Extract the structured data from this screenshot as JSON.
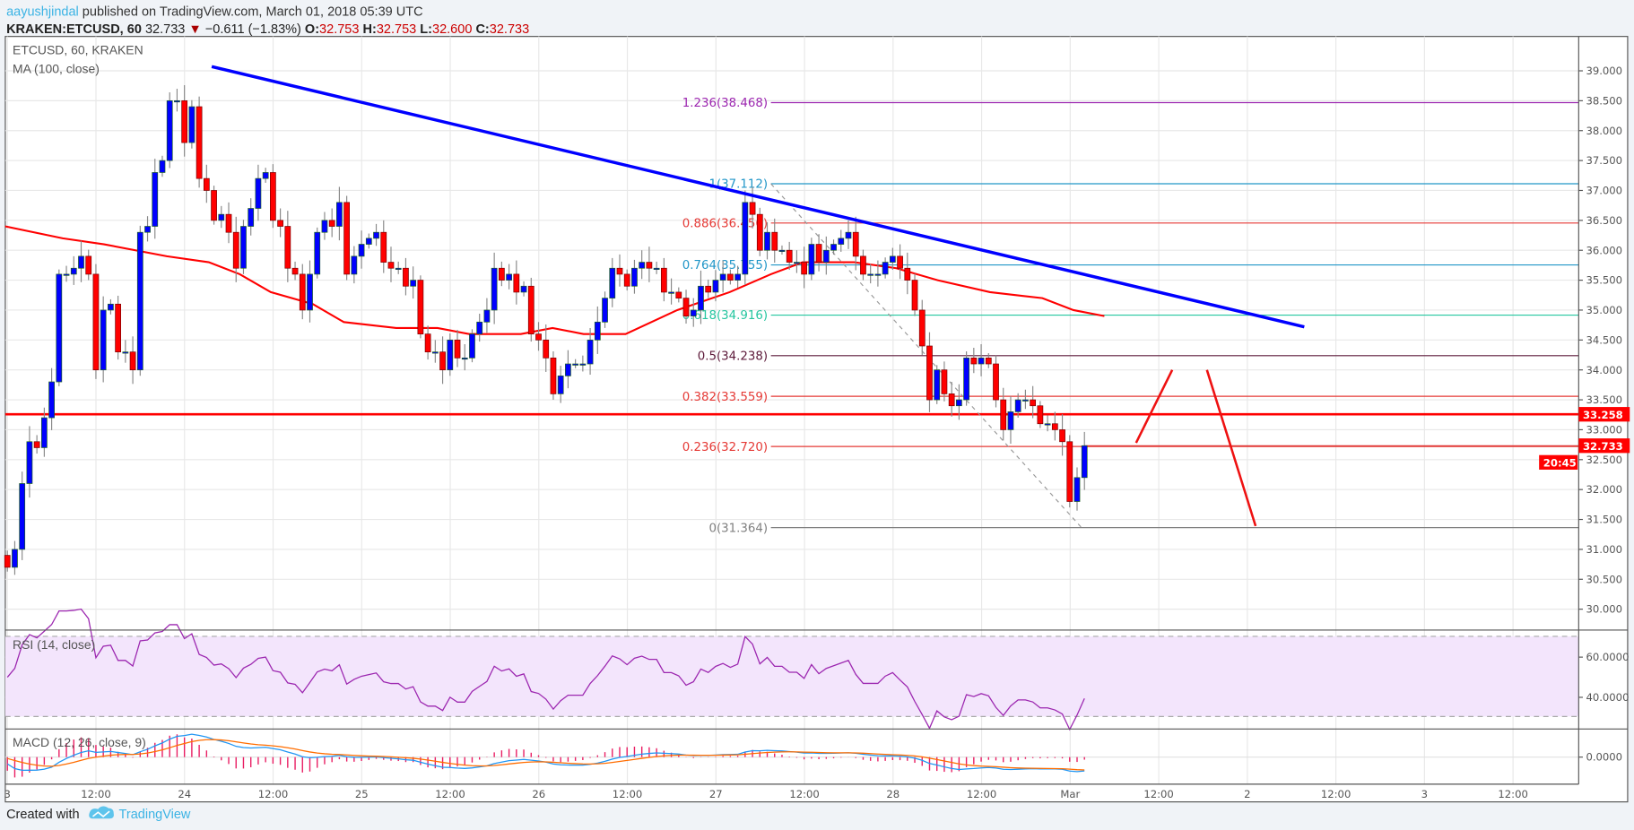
{
  "header": {
    "author": "aayushjindal",
    "published": " published on TradingView.com, March 01, 2018 05:39 UTC",
    "symbol": "KRAKEN:ETCUSD, 60",
    "last": "32.733",
    "change": "−0.611 (−1.83%)",
    "o_label": "O:",
    "o": "32.753",
    "h_label": "H:",
    "h": "32.753",
    "l_label": "L:",
    "l": "32.600",
    "c_label": "C:",
    "c": "32.733",
    "down_icon": "triangle-down-icon"
  },
  "legend": {
    "title": "ETCUSD, 60, KRAKEN",
    "ma": "MA (100, close)",
    "rsi": "RSI (14, close)",
    "macd": "MACD (12, 26, close, 9)"
  },
  "footer": {
    "created_with": "Created with",
    "brand": "TradingView"
  },
  "colors": {
    "up": "#0000ff",
    "down": "#ff0000",
    "ma": "#ff0000",
    "trend": "#0000ff",
    "support": "#ff0000",
    "rsi": "#9c27b0",
    "macd": "#2196f3",
    "signal": "#ff6d00",
    "hist": "#e91e63"
  },
  "chart_data": {
    "type": "candlestick",
    "title": "ETCUSD, 60, KRAKEN",
    "x_unit": "hours from first candle",
    "y_ticks": [
      "39.000",
      "38.500",
      "38.000",
      "37.500",
      "37.000",
      "36.500",
      "36.000",
      "35.500",
      "35.000",
      "34.500",
      "34.000",
      "33.500",
      "33.000",
      "32.500",
      "32.000",
      "31.500",
      "31.000",
      "30.500",
      "30.000"
    ],
    "ylim": [
      29.7,
      39.6
    ],
    "time_labels": [
      "3",
      "12:00",
      "24",
      "12:00",
      "25",
      "12:00",
      "26",
      "12:00",
      "27",
      "12:00",
      "28",
      "12:00",
      "Mar",
      "12:00",
      "2",
      "12:00",
      "3",
      "12:00"
    ],
    "first_open": 30.9,
    "closes": [
      30.7,
      31.0,
      32.1,
      32.8,
      32.7,
      33.2,
      33.8,
      35.6,
      35.6,
      35.7,
      35.9,
      35.6,
      34.0,
      35.0,
      35.1,
      34.3,
      34.3,
      34.0,
      36.3,
      36.4,
      37.3,
      37.5,
      38.5,
      38.5,
      37.8,
      38.4,
      37.2,
      37.0,
      36.5,
      36.6,
      36.3,
      35.7,
      36.4,
      36.7,
      37.2,
      37.3,
      36.5,
      36.4,
      35.7,
      35.6,
      35.0,
      35.6,
      36.3,
      36.5,
      36.4,
      36.8,
      35.6,
      35.9,
      36.1,
      36.2,
      36.3,
      35.8,
      35.7,
      35.7,
      35.4,
      35.5,
      34.6,
      34.3,
      34.3,
      34.0,
      34.5,
      34.2,
      34.2,
      34.6,
      34.8,
      35.0,
      35.7,
      35.5,
      35.6,
      35.3,
      35.4,
      34.6,
      34.5,
      34.2,
      33.6,
      33.9,
      34.1,
      34.1,
      34.1,
      34.5,
      34.8,
      35.2,
      35.7,
      35.6,
      35.4,
      35.7,
      35.8,
      35.7,
      35.7,
      35.3,
      35.3,
      35.2,
      34.9,
      35.0,
      35.4,
      35.3,
      35.5,
      35.6,
      35.5,
      35.6,
      36.8,
      36.6,
      36.0,
      36.3,
      36.0,
      36.0,
      35.8,
      35.8,
      35.6,
      36.1,
      35.8,
      36.0,
      36.1,
      36.2,
      36.3,
      35.9,
      35.6,
      35.6,
      35.6,
      35.8,
      35.9,
      35.7,
      35.5,
      35.0,
      34.4,
      33.5,
      34.0,
      33.6,
      33.4,
      33.5,
      34.2,
      34.1,
      34.2,
      34.1,
      33.5,
      33.0,
      33.3,
      33.5,
      33.5,
      33.4,
      33.1,
      33.1,
      33.0,
      32.8,
      31.8,
      32.2,
      32.733
    ],
    "ma100": [
      [
        -0.3,
        36.4
      ],
      [
        7.5,
        36.2
      ],
      [
        13.1,
        36.1
      ],
      [
        21.6,
        35.9
      ],
      [
        27.3,
        35.8
      ],
      [
        31.5,
        35.6
      ],
      [
        35.7,
        35.3
      ],
      [
        41.4,
        35.1
      ],
      [
        45.6,
        34.8
      ],
      [
        52.7,
        34.7
      ],
      [
        58.3,
        34.7
      ],
      [
        62.6,
        34.6
      ],
      [
        69.6,
        34.6
      ],
      [
        73.9,
        34.7
      ],
      [
        78.1,
        34.6
      ],
      [
        83.8,
        34.6
      ],
      [
        90.8,
        35.0
      ],
      [
        97.9,
        35.3
      ],
      [
        103.5,
        35.6
      ],
      [
        107.8,
        35.8
      ],
      [
        114.8,
        35.8
      ],
      [
        120.5,
        35.7
      ],
      [
        126.1,
        35.5
      ],
      [
        133.2,
        35.3
      ],
      [
        140.3,
        35.2
      ],
      [
        144.5,
        35.0
      ],
      [
        148.7,
        34.9
      ]
    ],
    "trendline": {
      "from": [
        27.7,
        39.07
      ],
      "to": [
        175.8,
        34.72
      ]
    },
    "support": {
      "price": 33.258,
      "label": "33.258"
    },
    "last_price_tag": "32.733",
    "countdown_tag": "20:45",
    "fib": {
      "from": [
        103.5,
        37.112
      ],
      "to": [
        145.6,
        31.364
      ],
      "levels": [
        {
          "label": "1.236(38.468)",
          "price": 38.468,
          "color": "#9c27b0"
        },
        {
          "label": "1(37.112)",
          "price": 37.112,
          "color": "#2196c8"
        },
        {
          "label": "0.886(36.456)",
          "price": 36.456,
          "color": "#e53935"
        },
        {
          "label": "0.764(35.755)",
          "price": 35.755,
          "color": "#2196c8"
        },
        {
          "label": "0.618(34.916)",
          "price": 34.916,
          "color": "#26c6a0"
        },
        {
          "label": "0.5(34.238)",
          "price": 34.238,
          "color": "#5d1a3a"
        },
        {
          "label": "0.382(33.559)",
          "price": 33.559,
          "color": "#e53935"
        },
        {
          "label": "0.236(32.720)",
          "price": 32.72,
          "color": "#e53935"
        },
        {
          "label": "0(31.364)",
          "price": 31.364,
          "color": "#808080"
        }
      ]
    },
    "projection": [
      [
        [
          153.0,
          32.78
        ],
        [
          157.9,
          34.0
        ]
      ],
      [
        [
          162.6,
          34.0
        ],
        [
          169.2,
          31.39
        ]
      ]
    ],
    "rsi": {
      "ticks": [
        "60.0000",
        "40.0000"
      ],
      "bands": [
        70,
        30
      ]
    },
    "macd": {
      "ticks": [
        "0.0000"
      ]
    }
  }
}
